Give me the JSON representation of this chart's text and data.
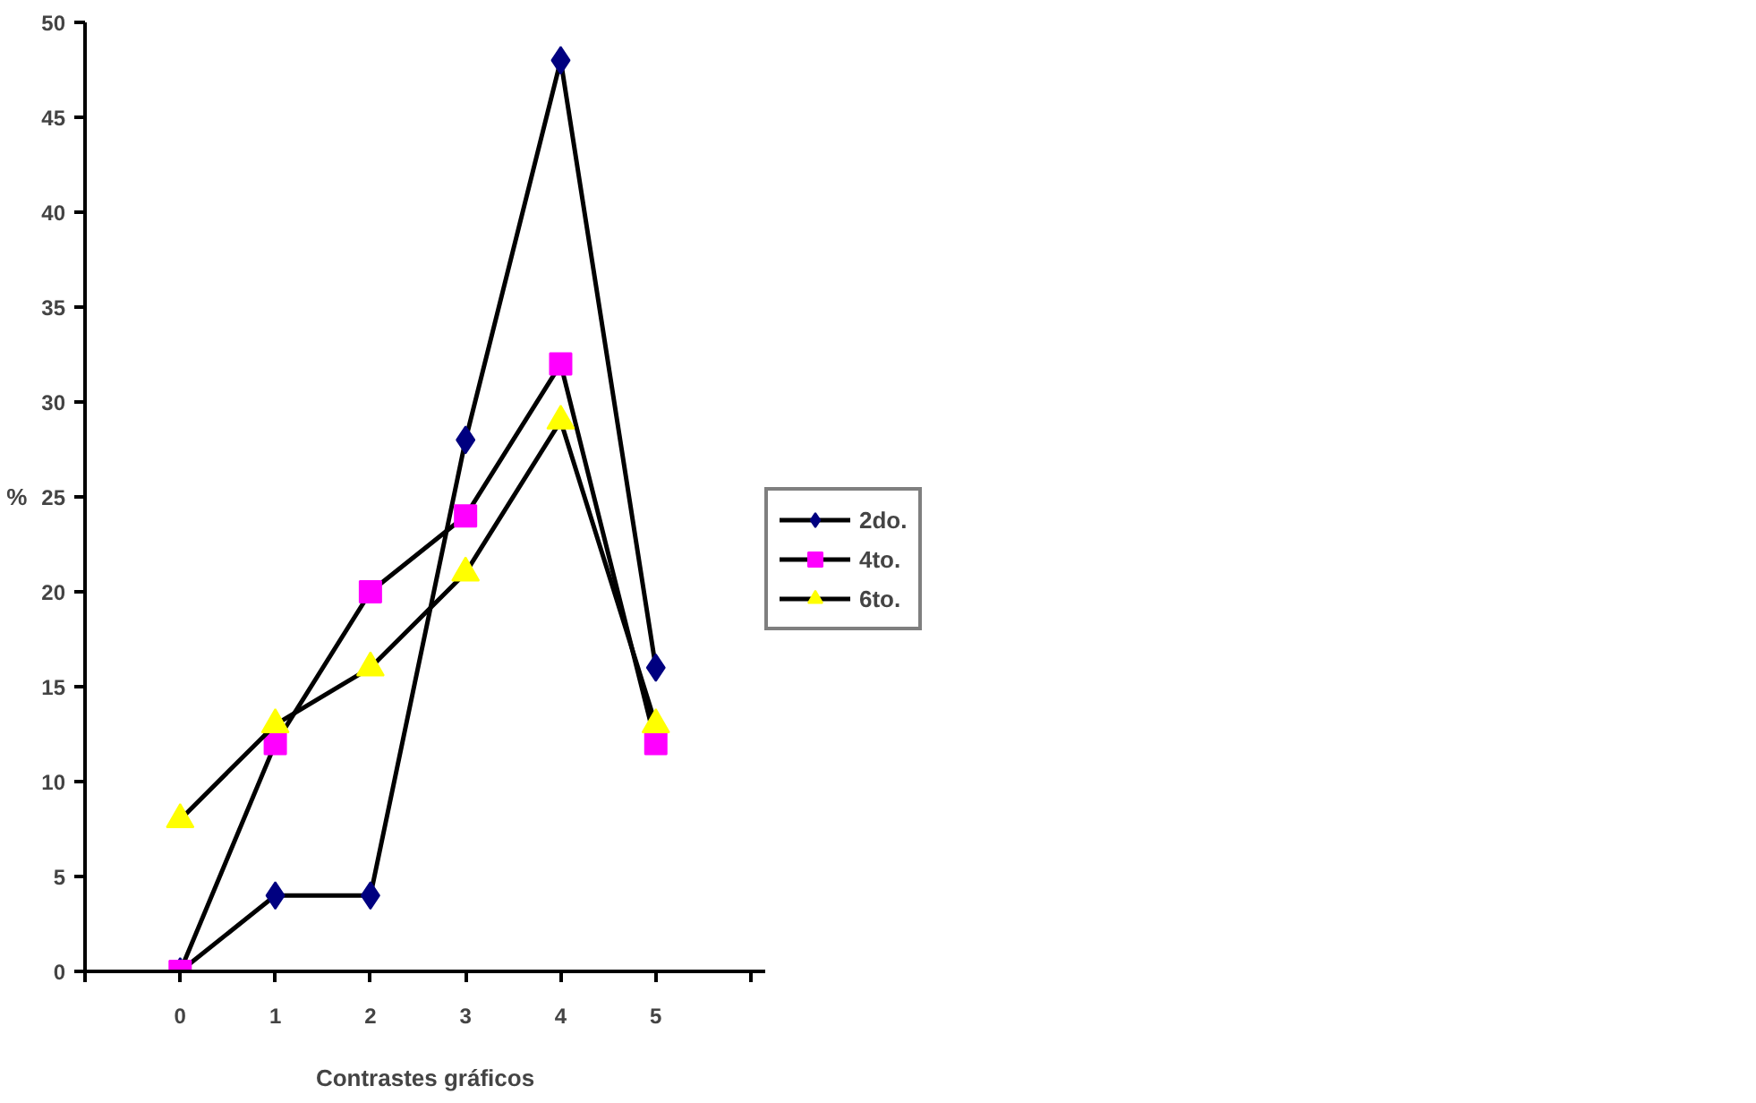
{
  "chart_data": {
    "type": "line",
    "xlabel": "Contrastes gráficos",
    "ylabel": "%",
    "x": [
      0,
      1,
      2,
      3,
      4,
      5
    ],
    "xlim": [
      -1,
      6.15
    ],
    "xticks": [
      {
        "value": -1,
        "label": null
      },
      0,
      1,
      2,
      3,
      4,
      5,
      {
        "value": 6,
        "label": null
      }
    ],
    "ylim": [
      0,
      50
    ],
    "yticks": [
      0,
      5,
      10,
      15,
      20,
      25,
      30,
      35,
      40,
      45,
      50
    ],
    "grid": false,
    "legend": "right",
    "line_style": "solid",
    "series": [
      {
        "name": "2do.",
        "color": "#000080",
        "marker": "diamond",
        "values": [
          0,
          4,
          4,
          28,
          48,
          16
        ]
      },
      {
        "name": "4to.",
        "color": "#ff00ff",
        "marker": "square",
        "values": [
          0,
          12,
          20,
          24,
          32,
          12
        ]
      },
      {
        "name": "6to.",
        "color": "#ffff00",
        "marker": "triangle",
        "values": [
          8,
          13,
          16,
          21,
          29,
          13
        ]
      }
    ]
  }
}
